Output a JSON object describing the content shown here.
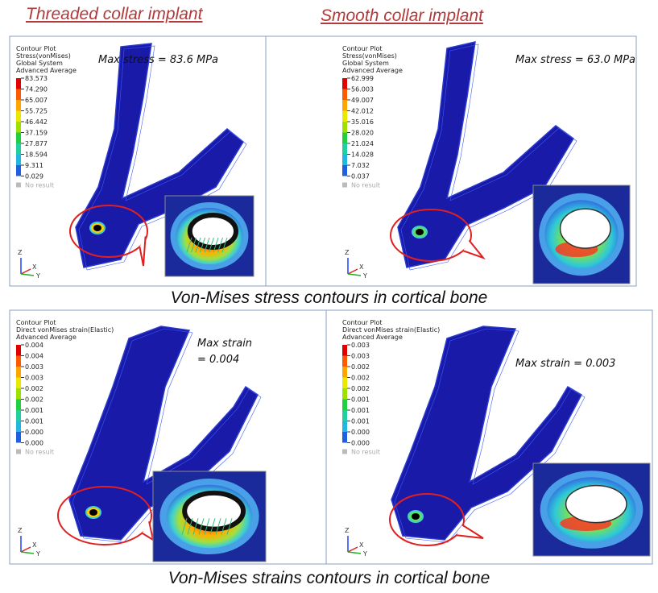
{
  "titles": {
    "left": "Threaded collar implant",
    "right": "Smooth collar implant"
  },
  "panels": [
    {
      "legend_header": [
        "Contour Plot",
        "Stress(vonMises)",
        "Global System",
        "Advanced Average"
      ],
      "legend_values": [
        "83.573",
        "74.290",
        "65.007",
        "55.725",
        "46.442",
        "37.159",
        "27.877",
        "18.594",
        "9.311",
        "0.029"
      ],
      "no_result": "No result",
      "annotation": [
        "Max stress = 83.6 MPa"
      ],
      "axes": [
        "Z",
        "X",
        "Y"
      ]
    },
    {
      "legend_header": [
        "Contour Plot",
        "Stress(vonMises)",
        "Global System",
        "Advanced Average"
      ],
      "legend_values": [
        "62.999",
        "56.003",
        "49.007",
        "42.012",
        "35.016",
        "28.020",
        "21.024",
        "14.028",
        "7.032",
        "0.037"
      ],
      "no_result": "No result",
      "annotation": [
        "Max stress = 63.0 MPa"
      ],
      "axes": [
        "Z",
        "X",
        "Y"
      ]
    },
    {
      "legend_header": [
        "Contour Plot",
        "Direct vonMises strain(Elastic)",
        "Advanced Average"
      ],
      "legend_values": [
        "0.004",
        "0.004",
        "0.003",
        "0.003",
        "0.002",
        "0.002",
        "0.001",
        "0.001",
        "0.000",
        "0.000"
      ],
      "no_result": "No result",
      "annotation": [
        "Max strain",
        "= 0.004"
      ],
      "axes": [
        "Z",
        "X",
        "Y"
      ]
    },
    {
      "legend_header": [
        "Contour Plot",
        "Direct vonMises strain(Elastic)",
        "Advanced Average"
      ],
      "legend_values": [
        "0.003",
        "0.003",
        "0.002",
        "0.002",
        "0.002",
        "0.001",
        "0.001",
        "0.001",
        "0.000",
        "0.000"
      ],
      "no_result": "No result",
      "annotation": [
        "Max strain = 0.003"
      ],
      "axes": [
        "Z",
        "X",
        "Y"
      ]
    }
  ],
  "captions": [
    "Von-Mises stress contours in cortical bone",
    "Von-Mises strains contours in cortical bone"
  ]
}
